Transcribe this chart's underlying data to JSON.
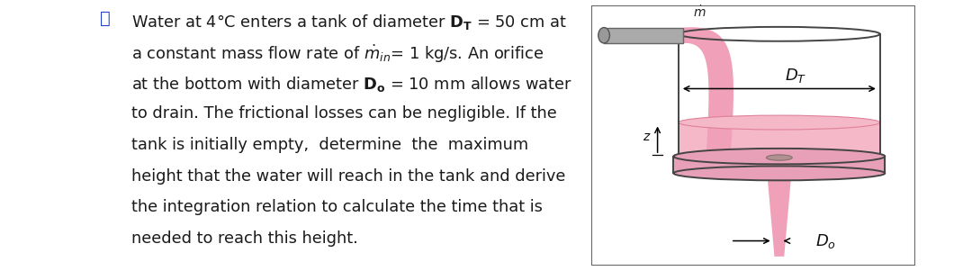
{
  "bg_color": "#ffffff",
  "text_color": "#1a1a1a",
  "pink_fill": "#f5b8c8",
  "pink_stream": "#f0a0b8",
  "pink_dark": "#e08098",
  "pink_base": "#e8a0b8",
  "gray_pipe": "#aaaaaa",
  "gray_pipe_dark": "#888888",
  "tank_border": "#444444",
  "border_box": "#888888",
  "orifice_color": "#c0c0c0",
  "fontsize_main": 12.8,
  "lines": [
    "Water at 4°C enters a tank of diameter $\\mathbf{D_T}$ = 50 cm at",
    "a constant mass flow rate of $\\dot{m}_{in}$= 1 kg/s. An orifice",
    "at the bottom with diameter $\\mathbf{D_o}$ = 10 mm allows water",
    "to drain. The frictional losses can be negligible. If the",
    "tank is initially empty,  determine  the  maximum",
    "height that the water will reach in the tank and derive",
    "the integration relation to calculate the time that is",
    "needed to reach this height."
  ]
}
